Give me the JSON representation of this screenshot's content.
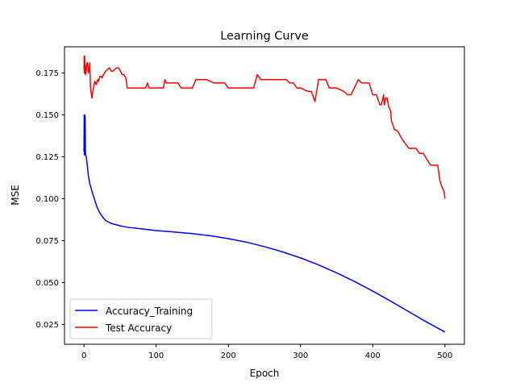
{
  "chart_data": {
    "type": "line",
    "title": "Learning Curve",
    "xlabel": "Epoch",
    "ylabel": "MSE",
    "xlim": [
      -27,
      527
    ],
    "ylim": [
      0.0132,
      0.1906
    ],
    "xticks": [
      0,
      100,
      200,
      300,
      400,
      500
    ],
    "yticks": [
      0.025,
      0.05,
      0.075,
      0.1,
      0.125,
      0.15,
      0.175
    ],
    "xtick_labels": [
      "0",
      "100",
      "200",
      "300",
      "400",
      "500"
    ],
    "ytick_labels": [
      "0.025",
      "0.050",
      "0.075",
      "0.100",
      "0.125",
      "0.150",
      "0.175"
    ],
    "grid": false,
    "legend_position": "lower-left",
    "series": [
      {
        "name": "Accuracy_Training",
        "color": "#0000ff",
        "x": [
          0,
          0.3,
          0.6,
          1,
          1.3,
          1.6,
          2,
          2.5,
          3,
          3.5,
          4,
          5,
          6,
          8,
          10,
          12,
          15,
          18,
          22,
          26,
          30,
          35,
          40,
          50,
          60,
          80,
          100,
          120,
          150,
          175,
          200,
          225,
          250,
          275,
          300,
          325,
          350,
          375,
          400,
          425,
          450,
          475,
          500
        ],
        "y": [
          0.128,
          0.15,
          0.126,
          0.15,
          0.127,
          0.149,
          0.127,
          0.126,
          0.125,
          0.124,
          0.122,
          0.118,
          0.114,
          0.109,
          0.106,
          0.103,
          0.099,
          0.095,
          0.0915,
          0.089,
          0.087,
          0.0858,
          0.085,
          0.0838,
          0.083,
          0.082,
          0.081,
          0.0803,
          0.0792,
          0.0779,
          0.0762,
          0.0741,
          0.0714,
          0.0683,
          0.0647,
          0.0605,
          0.0558,
          0.0506,
          0.0449,
          0.0389,
          0.0326,
          0.0264,
          0.0205
        ]
      },
      {
        "name": "Test Accuracy",
        "color": "#ff0000",
        "x": [
          0,
          0.3,
          0.6,
          1,
          1.3,
          1.6,
          2,
          2.5,
          3,
          4,
          5,
          6,
          7,
          8,
          9,
          10,
          11,
          12,
          13,
          14,
          15,
          17,
          19,
          20,
          22,
          24,
          25,
          27,
          30,
          35,
          38,
          40,
          45,
          48,
          53,
          55,
          58,
          60,
          75,
          85,
          88,
          90,
          110,
          112,
          114,
          130,
          135,
          150,
          155,
          170,
          180,
          195,
          200,
          235,
          240,
          245,
          250,
          280,
          285,
          290,
          295,
          300,
          310,
          315,
          320,
          325,
          335,
          340,
          350,
          360,
          365,
          370,
          380,
          385,
          390,
          395,
          400,
          405,
          410,
          412,
          415,
          416,
          418,
          420,
          422,
          425,
          426,
          428,
          430,
          432,
          435,
          440,
          445,
          450,
          460,
          465,
          470,
          480,
          485,
          490,
          493,
          495,
          497,
          499,
          500
        ],
        "y": [
          0.177,
          0.185,
          0.175,
          0.185,
          0.176,
          0.18,
          0.174,
          0.175,
          0.176,
          0.181,
          0.181,
          0.175,
          0.177,
          0.181,
          0.166,
          0.163,
          0.16,
          0.163,
          0.166,
          0.168,
          0.17,
          0.168,
          0.171,
          0.17,
          0.173,
          0.173,
          0.172,
          0.174,
          0.176,
          0.178,
          0.176,
          0.176,
          0.178,
          0.178,
          0.174,
          0.174,
          0.172,
          0.166,
          0.166,
          0.166,
          0.169,
          0.166,
          0.166,
          0.171,
          0.169,
          0.169,
          0.166,
          0.166,
          0.171,
          0.171,
          0.169,
          0.169,
          0.166,
          0.166,
          0.174,
          0.171,
          0.171,
          0.171,
          0.169,
          0.169,
          0.166,
          0.166,
          0.164,
          0.164,
          0.158,
          0.171,
          0.171,
          0.166,
          0.166,
          0.164,
          0.162,
          0.162,
          0.171,
          0.169,
          0.169,
          0.169,
          0.162,
          0.162,
          0.156,
          0.156,
          0.162,
          0.156,
          0.16,
          0.16,
          0.155,
          0.152,
          0.146,
          0.144,
          0.141,
          0.141,
          0.14,
          0.136,
          0.133,
          0.13,
          0.13,
          0.127,
          0.127,
          0.12,
          0.12,
          0.12,
          0.111,
          0.108,
          0.106,
          0.104,
          0.1
        ]
      }
    ]
  }
}
